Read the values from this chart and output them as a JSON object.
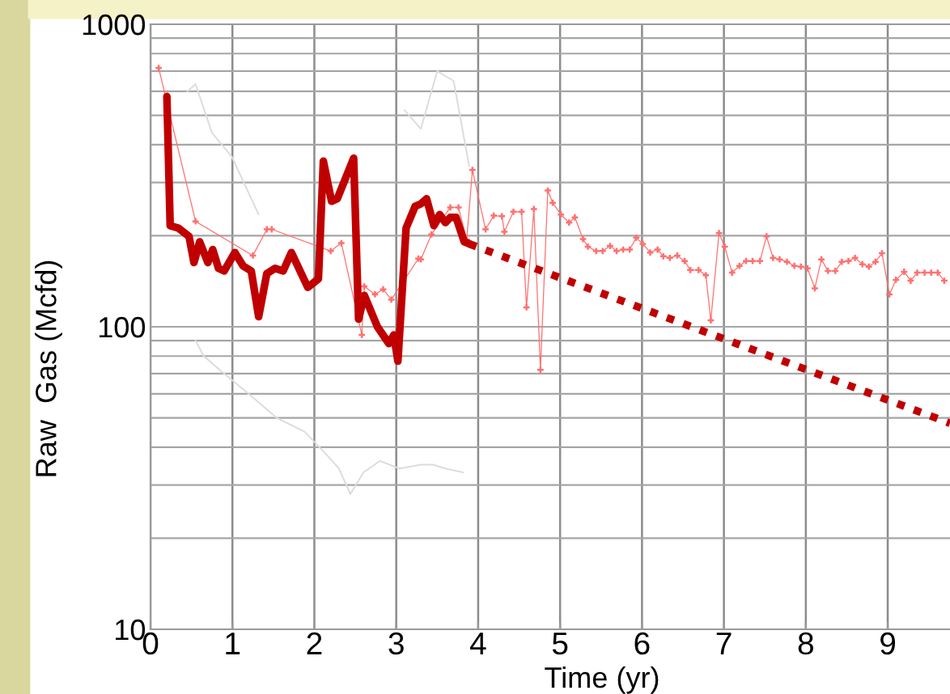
{
  "chart_data": {
    "type": "line",
    "xlabel": "Time (yr)",
    "ylabel": "Raw  Gas (Mcfd)",
    "log": "y",
    "grid": true,
    "xlim": [
      0,
      9.76
    ],
    "xticks": [
      0,
      1,
      2,
      3,
      4,
      5,
      6,
      7,
      8,
      9
    ],
    "ylim": [
      10,
      1000
    ],
    "yticks": [
      10,
      {
        "value": 20,
        "label": null
      },
      {
        "value": 30,
        "label": null
      },
      {
        "value": 40,
        "label": null
      },
      {
        "value": 50,
        "label": null
      },
      {
        "value": 60,
        "label": null
      },
      {
        "value": 70,
        "label": null
      },
      {
        "value": 80,
        "label": null
      },
      {
        "value": 90,
        "label": null
      },
      100,
      {
        "value": 200,
        "label": null
      },
      {
        "value": 300,
        "label": null
      },
      {
        "value": 400,
        "label": null
      },
      {
        "value": 500,
        "label": null
      },
      {
        "value": 600,
        "label": null
      },
      {
        "value": 700,
        "label": null
      },
      {
        "value": 800,
        "label": null
      },
      {
        "value": 900,
        "label": null
      },
      1000
    ],
    "series": [
      {
        "color": "#c00000",
        "x": [
          0.2,
          0.24,
          0.34,
          0.47,
          0.53,
          0.6,
          0.7,
          0.76,
          0.83,
          0.9,
          1.03,
          1.13,
          1.23,
          1.32,
          1.42,
          1.52,
          1.62,
          1.72,
          1.92,
          2.05,
          2.11,
          2.21,
          2.28,
          2.48,
          2.54,
          2.61,
          2.77,
          2.91,
          2.97,
          3.02,
          3.12,
          3.23,
          3.3,
          3.37,
          3.46,
          3.53,
          3.6,
          3.66,
          3.73,
          3.83,
          3.89
        ],
        "values": [
          577,
          216,
          212,
          199,
          163,
          191,
          163,
          180,
          156,
          153,
          176,
          159,
          153,
          108,
          150,
          156,
          153,
          176,
          135,
          144,
          353,
          260,
          265,
          361,
          106,
          127,
          100,
          88,
          94,
          77,
          212,
          250,
          255,
          265,
          216,
          235,
          221,
          230,
          230,
          191,
          188
        ]
      },
      {
        "color": "#c00000",
        "line_style": "dotted",
        "x": [
          3.89,
          9.76
        ],
        "values": [
          188,
          48
        ]
      },
      {
        "color": "#ff7070",
        "marker": "cross",
        "x": [
          0.1,
          0.55,
          1.25,
          1.42,
          1.48,
          2.2,
          2.33,
          2.58,
          2.61,
          2.74,
          2.84,
          2.94,
          3.27,
          3.3,
          3.43,
          3.66,
          3.76,
          3.86,
          3.93,
          4.09,
          4.19,
          4.29,
          4.32,
          4.43,
          4.53,
          4.59,
          4.68,
          4.76,
          4.85,
          4.91,
          5.01,
          5.11,
          5.18,
          5.28,
          5.34,
          5.44,
          5.52,
          5.61,
          5.69,
          5.77,
          5.85,
          5.93,
          6.01,
          6.1,
          6.19,
          6.26,
          6.34,
          6.43,
          6.52,
          6.59,
          6.69,
          6.78,
          6.84,
          6.94,
          7.01,
          7.1,
          7.19,
          7.27,
          7.35,
          7.44,
          7.52,
          7.6,
          7.68,
          7.77,
          7.86,
          7.94,
          8.02,
          8.11,
          8.19,
          8.27,
          8.36,
          8.44,
          8.52,
          8.6,
          8.69,
          8.77,
          8.85,
          8.93,
          9.02,
          9.1,
          9.2,
          9.28,
          9.36,
          9.45,
          9.53,
          9.61,
          9.69
        ],
        "values": [
          717,
          223,
          172,
          210,
          210,
          178,
          189,
          94,
          136,
          128,
          133,
          123,
          168,
          167,
          202,
          248,
          248,
          194,
          330,
          210,
          233,
          232,
          206,
          240,
          240,
          116,
          245,
          72,
          282,
          257,
          235,
          221,
          230,
          195,
          184,
          178,
          178,
          185,
          178,
          180,
          180,
          197,
          188,
          176,
          180,
          171,
          169,
          172,
          165,
          154,
          154,
          148,
          105,
          204,
          184,
          151,
          159,
          165,
          165,
          165,
          199,
          169,
          167,
          164,
          159,
          158,
          156,
          134,
          167,
          153,
          153,
          164,
          165,
          169,
          161,
          158,
          164,
          175,
          128,
          143,
          152,
          142,
          151,
          151,
          151,
          151,
          142
        ]
      },
      {
        "color": "#dcdcdc",
        "x": [
          0.55,
          0.65,
          0.9,
          1.2,
          1.54,
          1.88,
          2.14,
          2.3,
          2.44,
          2.6,
          2.8,
          3.04,
          3.3,
          3.45,
          3.6,
          3.82
        ],
        "values": [
          90,
          80,
          70,
          60,
          50,
          45,
          38,
          34,
          28,
          33,
          36,
          34,
          35,
          35,
          34,
          33
        ]
      },
      {
        "color": "#dcdcdc",
        "x": [
          0.45,
          0.55,
          0.75,
          0.99,
          1.32
        ],
        "values": [
          600,
          634,
          438,
          366,
          235
        ]
      },
      {
        "color": "#dcdcdc",
        "x": [
          3.1,
          3.3,
          3.5,
          3.7,
          3.89
        ],
        "values": [
          520,
          451,
          700,
          650,
          340
        ]
      }
    ]
  }
}
